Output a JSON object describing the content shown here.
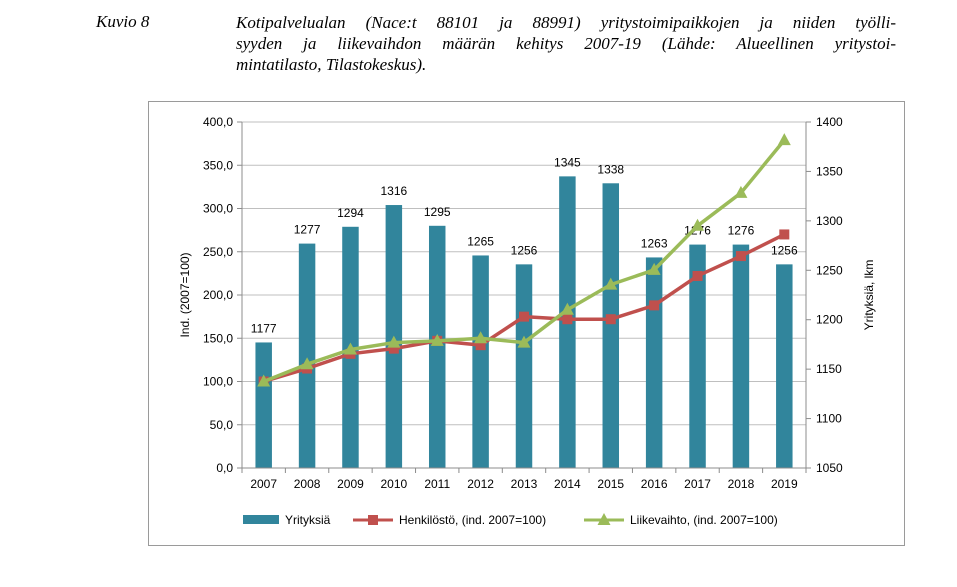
{
  "caption": {
    "label": "Kuvio 8",
    "lines": [
      "Kotipalvelualan (Nace:t 88101 ja 88991) yritystoimipaikkojen ja niiden työlli-",
      "syyden ja liikevaihdon määrän kehitys 2007-19 (Lähde: Alueellinen yritystoi-",
      "mintatilasto, Tilastokeskus)."
    ]
  },
  "chart_data": {
    "type": "bar",
    "categories": [
      "2007",
      "2008",
      "2009",
      "2010",
      "2011",
      "2012",
      "2013",
      "2014",
      "2015",
      "2016",
      "2017",
      "2018",
      "2019"
    ],
    "left_axis": {
      "label": "Ind. (2007=100)",
      "min": 0,
      "max": 400,
      "step": 50,
      "tick_labels": [
        "0,0",
        "50,0",
        "100,0",
        "150,0",
        "200,0",
        "250,0",
        "300,0",
        "350,0",
        "400,0"
      ]
    },
    "right_axis": {
      "label": "Yrityksiä, lkm",
      "min": 1050,
      "max": 1400,
      "step": 50,
      "tick_labels": [
        "1050",
        "1100",
        "1150",
        "1200",
        "1250",
        "1300",
        "1350",
        "1400"
      ]
    },
    "series": [
      {
        "name": "Yrityksiä",
        "kind": "bar",
        "axis": "right",
        "color": "#31859C",
        "values": [
          1177,
          1277,
          1294,
          1316,
          1295,
          1265,
          1256,
          1345,
          1338,
          1263,
          1276,
          1276,
          1256
        ],
        "labels": [
          "1177",
          "1277",
          "1294",
          "1316",
          "1295",
          "1265",
          "1256",
          "1345",
          "1338",
          "1263",
          "1276",
          "1276",
          "1256"
        ]
      },
      {
        "name": "Henkilöstö, (ind. 2007=100)",
        "kind": "line",
        "axis": "left",
        "color": "#C0504D",
        "marker": "square",
        "values": [
          100,
          115,
          132,
          138,
          147,
          142,
          175,
          172,
          172,
          188,
          222,
          245,
          270
        ]
      },
      {
        "name": "Liikevaihto, (ind. 2007=100)",
        "kind": "line",
        "axis": "left",
        "color": "#9BBB59",
        "marker": "triangle",
        "values": [
          100,
          120,
          137,
          145,
          147,
          150,
          145,
          183,
          212,
          229,
          280,
          318,
          379
        ]
      }
    ],
    "grid": true,
    "legend": "bottom"
  }
}
